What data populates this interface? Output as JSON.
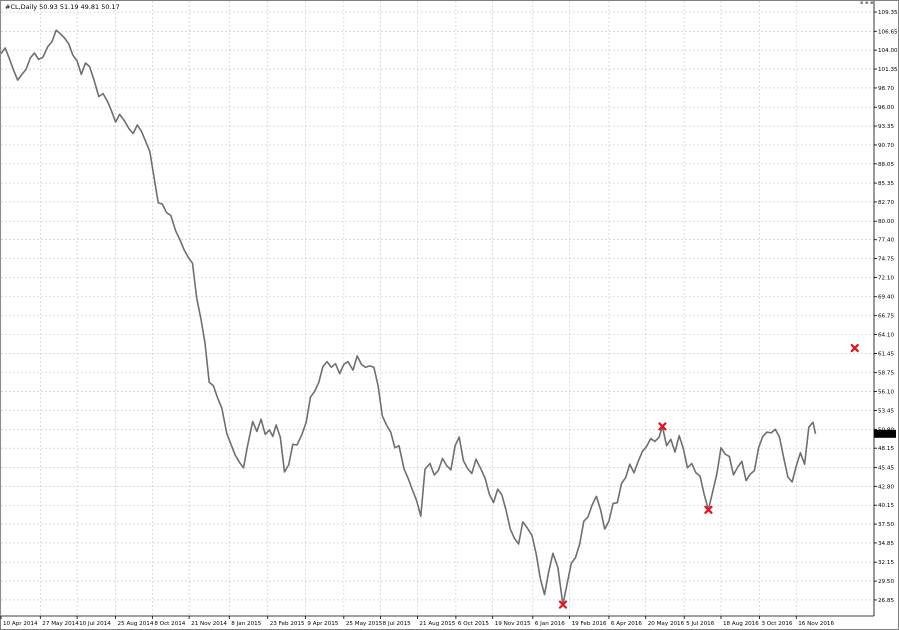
{
  "window": {
    "symbol_info": "#CL,Daily  50.93 51.19 49.81 50.17"
  },
  "colors": {
    "background": "#ffffff",
    "grid": "#c8c8c8",
    "price_line": "#6f6f6f",
    "marker": "#e8101a",
    "axis": "#000000",
    "price_tag_bg": "#000000",
    "price_tag_text": "#ffffff"
  },
  "chart_data": {
    "type": "line",
    "title": "",
    "xlabel": "",
    "ylabel": "",
    "grid": true,
    "price_axis_position": "right",
    "ylim": [
      24.6,
      110.9
    ],
    "xlim": [
      "2014-04-10",
      "2017-02-17"
    ],
    "y_ticks": [
      "109.35",
      "106.65",
      "104.00",
      "101.35",
      "98.70",
      "96.00",
      "93.35",
      "90.70",
      "88.05",
      "85.35",
      "82.70",
      "80.00",
      "77.40",
      "74.75",
      "72.10",
      "69.40",
      "66.75",
      "64.10",
      "61.45",
      "58.75",
      "56.10",
      "53.45",
      "50.80",
      "48.15",
      "45.45",
      "42.80",
      "40.15",
      "37.50",
      "34.85",
      "32.15",
      "29.50",
      "26.85"
    ],
    "x_ticks": [
      {
        "date": "2014-04-10",
        "label": "10 Apr 2014"
      },
      {
        "date": "2014-05-27",
        "label": "27 May 2014"
      },
      {
        "date": "2014-07-10",
        "label": "10 Jul 2014"
      },
      {
        "date": "2014-08-25",
        "label": "25 Aug 2014"
      },
      {
        "date": "2014-10-08",
        "label": "8 Oct 2014"
      },
      {
        "date": "2014-11-21",
        "label": "21 Nov 2014"
      },
      {
        "date": "2015-01-08",
        "label": "8 Jan 2015"
      },
      {
        "date": "2015-02-23",
        "label": "23 Feb 2015"
      },
      {
        "date": "2015-04-09",
        "label": "9 Apr 2015"
      },
      {
        "date": "2015-05-25",
        "label": "25 May 2015"
      },
      {
        "date": "2015-07-08",
        "label": "8 Jul 2015"
      },
      {
        "date": "2015-08-21",
        "label": "21 Aug 2015"
      },
      {
        "date": "2015-10-06",
        "label": "6 Oct 2015"
      },
      {
        "date": "2015-11-19",
        "label": "19 Nov 2015"
      },
      {
        "date": "2016-01-06",
        "label": "6 Jan 2016"
      },
      {
        "date": "2016-02-19",
        "label": "19 Feb 2016"
      },
      {
        "date": "2016-04-06",
        "label": "6 Apr 2016"
      },
      {
        "date": "2016-05-20",
        "label": "20 May 2016"
      },
      {
        "date": "2016-07-05",
        "label": "5 Jul 2016"
      },
      {
        "date": "2016-08-18",
        "label": "18 Aug 2016"
      },
      {
        "date": "2016-10-03",
        "label": "3 Oct 2016"
      },
      {
        "date": "2016-11-16",
        "label": "16 Nov 2016"
      }
    ],
    "last_price": 50.17,
    "last_price_label": "50.17",
    "series": [
      {
        "values": [
          [
            "2014-04-10",
            103.5
          ],
          [
            "2014-04-15",
            104.3
          ],
          [
            "2014-04-20",
            102.8
          ],
          [
            "2014-04-25",
            101.2
          ],
          [
            "2014-04-30",
            99.8
          ],
          [
            "2014-05-05",
            100.6
          ],
          [
            "2014-05-10",
            101.3
          ],
          [
            "2014-05-15",
            102.9
          ],
          [
            "2014-05-20",
            103.6
          ],
          [
            "2014-05-25",
            102.7
          ],
          [
            "2014-05-30",
            103.0
          ],
          [
            "2014-06-05",
            104.5
          ],
          [
            "2014-06-10",
            105.2
          ],
          [
            "2014-06-15",
            106.8
          ],
          [
            "2014-06-20",
            106.3
          ],
          [
            "2014-06-25",
            105.7
          ],
          [
            "2014-06-30",
            104.9
          ],
          [
            "2014-07-05",
            103.3
          ],
          [
            "2014-07-10",
            102.5
          ],
          [
            "2014-07-15",
            100.6
          ],
          [
            "2014-07-20",
            102.2
          ],
          [
            "2014-07-25",
            101.7
          ],
          [
            "2014-07-30",
            99.9
          ],
          [
            "2014-08-05",
            97.5
          ],
          [
            "2014-08-10",
            97.9
          ],
          [
            "2014-08-15",
            96.9
          ],
          [
            "2014-08-20",
            95.5
          ],
          [
            "2014-08-25",
            93.9
          ],
          [
            "2014-08-30",
            95.0
          ],
          [
            "2014-09-05",
            94.0
          ],
          [
            "2014-09-10",
            93.0
          ],
          [
            "2014-09-15",
            92.3
          ],
          [
            "2014-09-20",
            93.5
          ],
          [
            "2014-09-25",
            92.6
          ],
          [
            "2014-09-30",
            91.2
          ],
          [
            "2014-10-05",
            89.8
          ],
          [
            "2014-10-10",
            86.2
          ],
          [
            "2014-10-15",
            82.6
          ],
          [
            "2014-10-20",
            82.4
          ],
          [
            "2014-10-25",
            81.2
          ],
          [
            "2014-10-30",
            80.8
          ],
          [
            "2014-11-05",
            78.6
          ],
          [
            "2014-11-10",
            77.4
          ],
          [
            "2014-11-15",
            76.0
          ],
          [
            "2014-11-20",
            74.9
          ],
          [
            "2014-11-25",
            74.1
          ],
          [
            "2014-11-30",
            69.2
          ],
          [
            "2014-12-05",
            66.3
          ],
          [
            "2014-12-10",
            62.9
          ],
          [
            "2014-12-15",
            57.4
          ],
          [
            "2014-12-20",
            56.9
          ],
          [
            "2014-12-25",
            55.2
          ],
          [
            "2014-12-30",
            53.8
          ],
          [
            "2015-01-05",
            50.2
          ],
          [
            "2015-01-10",
            48.7
          ],
          [
            "2015-01-15",
            47.2
          ],
          [
            "2015-01-20",
            46.2
          ],
          [
            "2015-01-25",
            45.4
          ],
          [
            "2015-01-30",
            48.6
          ],
          [
            "2015-02-05",
            51.9
          ],
          [
            "2015-02-10",
            50.5
          ],
          [
            "2015-02-15",
            52.2
          ],
          [
            "2015-02-20",
            50.1
          ],
          [
            "2015-02-25",
            50.7
          ],
          [
            "2015-03-01",
            49.8
          ],
          [
            "2015-03-05",
            51.4
          ],
          [
            "2015-03-10",
            49.7
          ],
          [
            "2015-03-15",
            44.8
          ],
          [
            "2015-03-20",
            45.8
          ],
          [
            "2015-03-25",
            48.7
          ],
          [
            "2015-03-30",
            48.6
          ],
          [
            "2015-04-05",
            50.1
          ],
          [
            "2015-04-10",
            51.8
          ],
          [
            "2015-04-15",
            55.3
          ],
          [
            "2015-04-20",
            56.1
          ],
          [
            "2015-04-25",
            57.4
          ],
          [
            "2015-04-30",
            59.6
          ],
          [
            "2015-05-05",
            60.3
          ],
          [
            "2015-05-10",
            59.5
          ],
          [
            "2015-05-15",
            60.0
          ],
          [
            "2015-05-20",
            58.6
          ],
          [
            "2015-05-25",
            59.9
          ],
          [
            "2015-05-30",
            60.3
          ],
          [
            "2015-06-05",
            59.1
          ],
          [
            "2015-06-10",
            61.1
          ],
          [
            "2015-06-15",
            59.9
          ],
          [
            "2015-06-20",
            59.5
          ],
          [
            "2015-06-25",
            59.7
          ],
          [
            "2015-06-30",
            59.5
          ],
          [
            "2015-07-05",
            56.9
          ],
          [
            "2015-07-10",
            52.7
          ],
          [
            "2015-07-15",
            51.4
          ],
          [
            "2015-07-20",
            50.4
          ],
          [
            "2015-07-25",
            48.2
          ],
          [
            "2015-07-30",
            48.5
          ],
          [
            "2015-08-05",
            45.2
          ],
          [
            "2015-08-10",
            43.9
          ],
          [
            "2015-08-15",
            42.3
          ],
          [
            "2015-08-20",
            40.8
          ],
          [
            "2015-08-25",
            38.6
          ],
          [
            "2015-08-30",
            45.2
          ],
          [
            "2015-09-05",
            46.0
          ],
          [
            "2015-09-10",
            44.4
          ],
          [
            "2015-09-15",
            45.0
          ],
          [
            "2015-09-20",
            46.7
          ],
          [
            "2015-09-25",
            45.7
          ],
          [
            "2015-09-30",
            45.1
          ],
          [
            "2015-10-05",
            48.5
          ],
          [
            "2015-10-10",
            49.7
          ],
          [
            "2015-10-15",
            46.4
          ],
          [
            "2015-10-20",
            45.3
          ],
          [
            "2015-10-25",
            44.6
          ],
          [
            "2015-10-30",
            46.6
          ],
          [
            "2015-11-05",
            45.2
          ],
          [
            "2015-11-10",
            43.9
          ],
          [
            "2015-11-15",
            41.7
          ],
          [
            "2015-11-20",
            40.5
          ],
          [
            "2015-11-25",
            42.4
          ],
          [
            "2015-11-30",
            41.6
          ],
          [
            "2015-12-05",
            39.4
          ],
          [
            "2015-12-10",
            36.8
          ],
          [
            "2015-12-15",
            35.5
          ],
          [
            "2015-12-20",
            34.7
          ],
          [
            "2015-12-25",
            37.8
          ],
          [
            "2015-12-30",
            37.0
          ],
          [
            "2016-01-05",
            35.9
          ],
          [
            "2016-01-10",
            33.3
          ],
          [
            "2016-01-15",
            29.8
          ],
          [
            "2016-01-20",
            27.6
          ],
          [
            "2016-01-25",
            30.8
          ],
          [
            "2016-01-30",
            33.4
          ],
          [
            "2016-02-05",
            31.4
          ],
          [
            "2016-02-11",
            26.2
          ],
          [
            "2016-02-16",
            29.1
          ],
          [
            "2016-02-21",
            32.0
          ],
          [
            "2016-02-26",
            32.8
          ],
          [
            "2016-03-02",
            34.7
          ],
          [
            "2016-03-07",
            37.9
          ],
          [
            "2016-03-12",
            38.5
          ],
          [
            "2016-03-17",
            40.2
          ],
          [
            "2016-03-22",
            41.4
          ],
          [
            "2016-03-27",
            39.5
          ],
          [
            "2016-04-01",
            36.8
          ],
          [
            "2016-04-06",
            37.9
          ],
          [
            "2016-04-11",
            40.4
          ],
          [
            "2016-04-16",
            40.5
          ],
          [
            "2016-04-21",
            43.2
          ],
          [
            "2016-04-26",
            44.0
          ],
          [
            "2016-05-01",
            45.9
          ],
          [
            "2016-05-06",
            44.7
          ],
          [
            "2016-05-11",
            46.3
          ],
          [
            "2016-05-16",
            47.7
          ],
          [
            "2016-05-21",
            48.4
          ],
          [
            "2016-05-26",
            49.5
          ],
          [
            "2016-05-31",
            49.1
          ],
          [
            "2016-06-05",
            49.7
          ],
          [
            "2016-06-09",
            51.2
          ],
          [
            "2016-06-14",
            48.5
          ],
          [
            "2016-06-19",
            49.4
          ],
          [
            "2016-06-24",
            47.6
          ],
          [
            "2016-06-29",
            49.9
          ],
          [
            "2016-07-04",
            48.1
          ],
          [
            "2016-07-09",
            45.4
          ],
          [
            "2016-07-14",
            46.0
          ],
          [
            "2016-07-19",
            44.7
          ],
          [
            "2016-07-24",
            44.2
          ],
          [
            "2016-07-29",
            41.6
          ],
          [
            "2016-08-03",
            39.5
          ],
          [
            "2016-08-08",
            42.0
          ],
          [
            "2016-08-13",
            44.5
          ],
          [
            "2016-08-18",
            48.2
          ],
          [
            "2016-08-23",
            47.3
          ],
          [
            "2016-08-28",
            47.0
          ],
          [
            "2016-09-02",
            44.4
          ],
          [
            "2016-09-07",
            45.5
          ],
          [
            "2016-09-12",
            46.3
          ],
          [
            "2016-09-17",
            43.6
          ],
          [
            "2016-09-22",
            44.5
          ],
          [
            "2016-09-27",
            45.0
          ],
          [
            "2016-10-02",
            48.2
          ],
          [
            "2016-10-07",
            49.8
          ],
          [
            "2016-10-12",
            50.4
          ],
          [
            "2016-10-17",
            50.3
          ],
          [
            "2016-10-22",
            50.8
          ],
          [
            "2016-10-27",
            49.7
          ],
          [
            "2016-11-01",
            46.8
          ],
          [
            "2016-11-06",
            44.1
          ],
          [
            "2016-11-11",
            43.4
          ],
          [
            "2016-11-16",
            45.6
          ],
          [
            "2016-11-21",
            47.5
          ],
          [
            "2016-11-26",
            45.9
          ],
          [
            "2016-12-01",
            51.1
          ],
          [
            "2016-12-06",
            51.8
          ],
          [
            "2016-12-09",
            50.17
          ]
        ]
      }
    ],
    "markers": [
      {
        "date": "2016-02-11",
        "value": 26.2
      },
      {
        "date": "2016-06-09",
        "value": 51.2
      },
      {
        "date": "2016-08-03",
        "value": 39.5
      },
      {
        "date": "2017-01-25",
        "value": 62.2
      }
    ]
  }
}
